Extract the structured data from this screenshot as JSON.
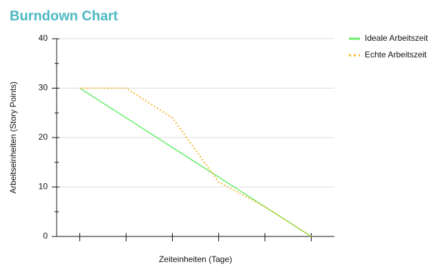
{
  "chart_data": {
    "type": "line",
    "title": "Burndown Chart",
    "x_label": "Zeiteinheiten (Tage)",
    "y_label": "Arbeitseinheiten (Story Points)",
    "categories": [
      null,
      null,
      null,
      null,
      null,
      null
    ],
    "series": [
      {
        "name": "Ideale Arbeitszeit",
        "color": "#66ee66",
        "dash": "solid",
        "values": [
          30,
          24,
          18,
          12,
          6,
          0
        ]
      },
      {
        "name": "Echte Arbeitszeit",
        "color": "#f5b82e",
        "dash": "dotted",
        "values": [
          30,
          30,
          24,
          11,
          6,
          0
        ]
      }
    ],
    "ylim": [
      0,
      40
    ],
    "yticks": [
      0,
      10,
      20,
      30,
      40
    ],
    "grid": true,
    "legend": "top-right"
  }
}
